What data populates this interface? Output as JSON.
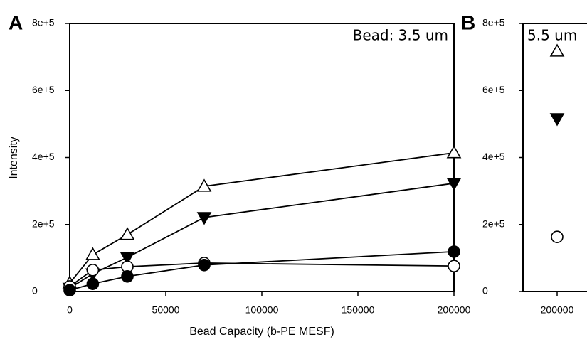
{
  "chart_data": [
    {
      "type": "line",
      "panel_label": "A",
      "annotation": "Bead: 3.5 um",
      "x_label": "Bead Capacity (b-PE MESF)",
      "y_label": "Intensity",
      "xlim": [
        0,
        200000
      ],
      "xticks": [
        0,
        50000,
        100000,
        150000,
        200000
      ],
      "ylim": [
        0,
        800000
      ],
      "yticks": [
        0,
        {
          "value": 200000,
          "label": "2e+5"
        },
        {
          "value": 400000,
          "label": "4e+5"
        },
        {
          "value": 600000,
          "label": "6e+5"
        },
        {
          "value": 800000,
          "label": "8e+5"
        }
      ],
      "x": [
        0,
        12000,
        30000,
        70000,
        200000
      ],
      "series": [
        {
          "marker": "triangle-up",
          "filled": false,
          "color": "#000000",
          "values": [
            25000,
            110000,
            170000,
            314000,
            414000
          ]
        },
        {
          "marker": "triangle-down",
          "filled": true,
          "color": "#000000",
          "values": [
            10000,
            53000,
            102000,
            221000,
            323000
          ]
        },
        {
          "marker": "circle",
          "filled": false,
          "color": "#000000",
          "values": [
            15000,
            64000,
            74000,
            85000,
            76000
          ]
        },
        {
          "marker": "circle",
          "filled": true,
          "color": "#000000",
          "values": [
            4000,
            23000,
            45000,
            79000,
            119000
          ]
        }
      ]
    },
    {
      "type": "scatter",
      "panel_label": "B",
      "annotation": "5.5 um",
      "categories": [
        "200000"
      ],
      "ylim": [
        0,
        800000
      ],
      "yticks": [
        0,
        {
          "value": 200000,
          "label": "2e+5"
        },
        {
          "value": 400000,
          "label": "4e+5"
        },
        {
          "value": 600000,
          "label": "6e+5"
        },
        {
          "value": 800000,
          "label": "8e+5"
        }
      ],
      "series": [
        {
          "marker": "triangle-up",
          "filled": false,
          "color": "#000000",
          "values": [
            717000
          ]
        },
        {
          "marker": "triangle-down",
          "filled": true,
          "color": "#000000",
          "values": [
            516000
          ]
        },
        {
          "marker": "circle",
          "filled": false,
          "color": "#000000",
          "values": [
            163000
          ]
        }
      ]
    }
  ]
}
